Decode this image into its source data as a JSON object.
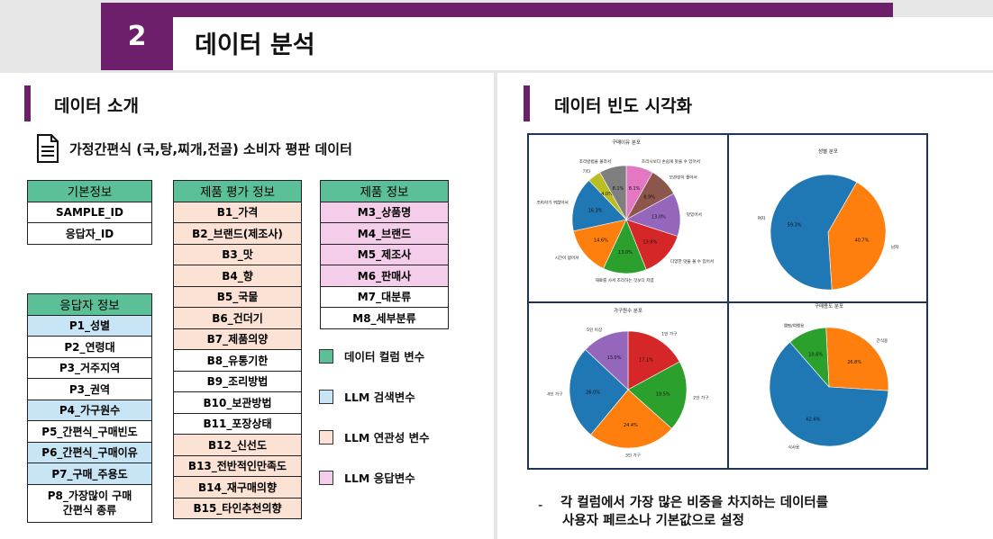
{
  "header": {
    "number": "2",
    "title": "데이터 분석"
  },
  "left": {
    "section_title": "데이터 소개",
    "doc_title": "가정간편식 (국,탕,찌개,전골) 소비자 평판 데이터",
    "basic": {
      "header": "기본정보",
      "rows": [
        {
          "text": "SAMPLE_ID",
          "c": "w"
        },
        {
          "text": "응답자_ID",
          "c": "w"
        }
      ]
    },
    "respondent": {
      "header": "응답자 정보",
      "rows": [
        {
          "text": "P1_성별",
          "c": "b"
        },
        {
          "text": "P2_연령대",
          "c": "w"
        },
        {
          "text": "P3_거주지역",
          "c": "w"
        },
        {
          "text": "P3_권역",
          "c": "w"
        },
        {
          "text": "P4_가구원수",
          "c": "b"
        },
        {
          "text": "P5_간편식_구매빈도",
          "c": "w"
        },
        {
          "text": "P6_간편식_구매이유",
          "c": "b"
        },
        {
          "text": "P7_구매_주용도",
          "c": "b"
        },
        {
          "text": "P8_가장많이 구매\n간편식 종류",
          "c": "w"
        }
      ]
    },
    "evaluation": {
      "header": "제품 평가 정보",
      "rows": [
        {
          "text": "B1_가격",
          "c": "o"
        },
        {
          "text": "B2_브랜드(제조사)",
          "c": "o"
        },
        {
          "text": "B3_맛",
          "c": "o"
        },
        {
          "text": "B4_향",
          "c": "o"
        },
        {
          "text": "B5_국물",
          "c": "o"
        },
        {
          "text": "B6_건더기",
          "c": "o"
        },
        {
          "text": "B7_제품의양",
          "c": "o"
        },
        {
          "text": "B8_유통기한",
          "c": "w"
        },
        {
          "text": "B9_조리방법",
          "c": "w"
        },
        {
          "text": "B10_보관방법",
          "c": "w"
        },
        {
          "text": "B11_포장상태",
          "c": "w"
        },
        {
          "text": "B12_신선도",
          "c": "o"
        },
        {
          "text": "B13_전반적인만족도",
          "c": "o"
        },
        {
          "text": "B14_재구매의향",
          "c": "o"
        },
        {
          "text": "B15_타인추천의향",
          "c": "o"
        }
      ]
    },
    "product": {
      "header": "제품 정보",
      "rows": [
        {
          "text": "M3_상품명",
          "c": "p"
        },
        {
          "text": "M4_브랜드",
          "c": "p"
        },
        {
          "text": "M5_제조사",
          "c": "p"
        },
        {
          "text": "M6_판매사",
          "c": "p"
        },
        {
          "text": "M7_대분류",
          "c": "w"
        },
        {
          "text": "M8_세부분류",
          "c": "w"
        }
      ]
    },
    "legend": [
      {
        "label": "데이터 컬럼 변수",
        "color": "#5bbf97"
      },
      {
        "label": "LLM 검색변수",
        "color": "#c7e5f5"
      },
      {
        "label": "LLM 연관성 변수",
        "color": "#fbe2d4"
      },
      {
        "label": "LLM 응답변수",
        "color": "#f4cdea"
      }
    ]
  },
  "right": {
    "section_title": "데이터 빈도 시각화",
    "note_line1": "각 컬럼에서 가장 많은 비중을 차지하는 데이터를",
    "note_line2": "사용자 페르소나 기본값으로 설정",
    "note_dash": "-"
  },
  "chart_data": [
    {
      "type": "pie",
      "title": "구매이유 분포",
      "slices": [
        {
          "label": "조리시보다 손쉽게 맛을 수 있어서",
          "value": 8.1,
          "color": "#e377c2"
        },
        {
          "label": "보관성이 좋아서",
          "value": 8.9,
          "color": "#8c564b"
        },
        {
          "label": "맛있어서",
          "value": 13.0,
          "color": "#9467bd"
        },
        {
          "label": "다양한 맛을 볼 수 있어서",
          "value": 13.9,
          "color": "#d62728"
        },
        {
          "label": "재료를 사서 조리하는 것보다 저렴",
          "value": 13.0,
          "color": "#2ca02c"
        },
        {
          "label": "시간이 없어서",
          "value": 14.6,
          "color": "#ff7f0e"
        },
        {
          "label": "조리하기 귀찮아서",
          "value": 16.3,
          "color": "#1f77b4"
        },
        {
          "label": "기타",
          "value": 4.0,
          "color": "#bcbd22"
        },
        {
          "label": "조리방법을 몰라서",
          "value": 8.1,
          "color": "#7f7f7f"
        }
      ]
    },
    {
      "type": "pie",
      "title": "성별 분포",
      "slices": [
        {
          "label": "남자",
          "value": 40.7,
          "color": "#ff7f0e"
        },
        {
          "label": "여자",
          "value": 59.3,
          "color": "#1f77b4"
        }
      ]
    },
    {
      "type": "pie",
      "title": "가구원수 분포",
      "slices": [
        {
          "label": "1인 가구",
          "value": 17.1,
          "color": "#d62728"
        },
        {
          "label": "2인 가구",
          "value": 19.5,
          "color": "#2ca02c"
        },
        {
          "label": "3인 가구",
          "value": 24.4,
          "color": "#ff7f0e"
        },
        {
          "label": "4인 가구",
          "value": 26.0,
          "color": "#1f77b4"
        },
        {
          "label": "5인 이상",
          "value": 13.0,
          "color": "#9467bd"
        }
      ]
    },
    {
      "type": "pie",
      "title": "구매용도 분포",
      "slices": [
        {
          "label": "간식용",
          "value": 26.8,
          "color": "#ff7f0e"
        },
        {
          "label": "식사용",
          "value": 62.6,
          "color": "#1f77b4"
        },
        {
          "label": "캠핑/여행용",
          "value": 10.6,
          "color": "#2ca02c"
        }
      ]
    }
  ]
}
